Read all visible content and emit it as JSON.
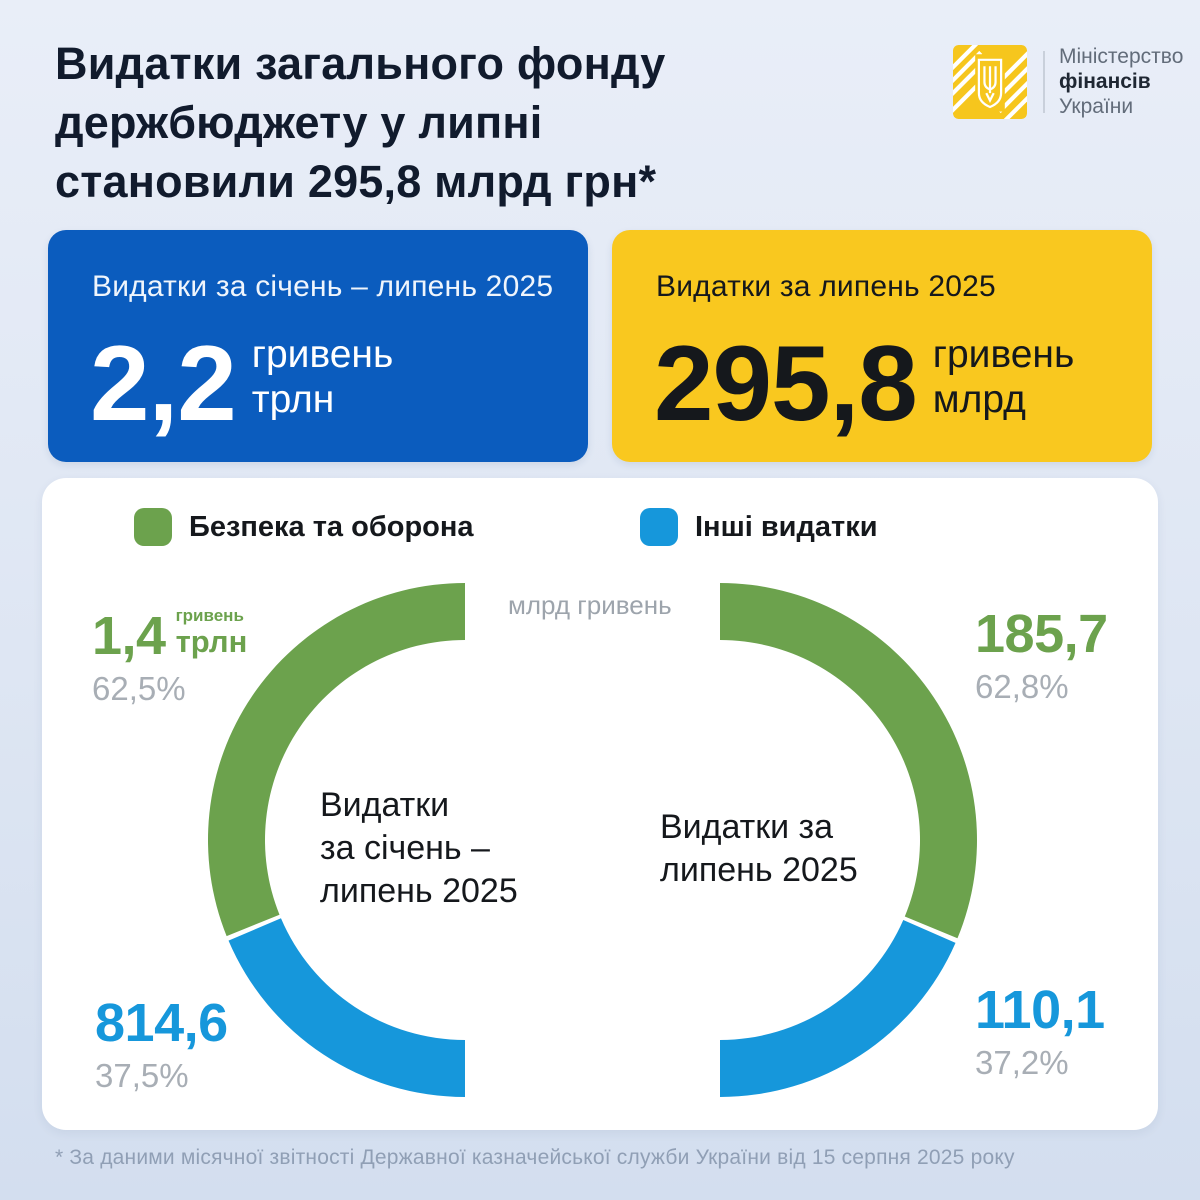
{
  "page": {
    "title_lines": [
      "Видатки загального фонду",
      "держбюджету у липні",
      "становили 295,8 млрд грн*"
    ],
    "footnote": "* За даними місячної звітності Державної казначейської служби України від 15 серпня 2025 року"
  },
  "logo": {
    "org_line1": "Міністерство",
    "org_line2": "фінансів",
    "org_line3": "України",
    "emblem_color": "#F6C61D"
  },
  "stat_cards": [
    {
      "label": "Видатки за січень – липень 2025",
      "value": "2,2",
      "unit_top": "гривень",
      "unit_bottom": "трлн",
      "bg": "#0B5CBE"
    },
    {
      "label": "Видатки за липень 2025",
      "value": "295,8",
      "unit_top": "гривень",
      "unit_bottom": "млрд",
      "bg": "#F9C81F"
    }
  ],
  "chart": {
    "legend": [
      {
        "label": "Безпека та оборона",
        "color": "#6CA24D"
      },
      {
        "label": "Інші видатки",
        "color": "#1697DB"
      }
    ],
    "units_caption": "млрд гривень"
  },
  "donuts": [
    {
      "side": "left",
      "center_lines": [
        "Видатки",
        "за січень –",
        "липень 2025"
      ],
      "segments": [
        {
          "name": "Безпека та оборона",
          "color": "#6CA24D",
          "pct": 62.5
        },
        {
          "name": "Інші видатки",
          "color": "#1697DB",
          "pct": 37.5
        }
      ],
      "value_labels": {
        "top": {
          "value": "1,4",
          "unit_small": "гривень",
          "unit_big": "трлн",
          "pct": "62,5%"
        },
        "bottom": {
          "value": "814,6",
          "pct": "37,5%"
        }
      }
    },
    {
      "side": "right",
      "center_lines": [
        "Видатки за",
        "липень 2025"
      ],
      "segments": [
        {
          "name": "Безпека та оборона",
          "color": "#6CA24D",
          "pct": 62.8
        },
        {
          "name": "Інші видатки",
          "color": "#1697DB",
          "pct": 37.2
        }
      ],
      "value_labels": {
        "top": {
          "value": "185,7",
          "pct": "62,8%"
        },
        "bottom": {
          "value": "110,1",
          "pct": "37,2%"
        }
      }
    }
  ],
  "chart_data": [
    {
      "type": "pie",
      "title": "Видатки за січень – липень 2025",
      "subtype": "half-donut, opens right",
      "unit": "млрд гривень",
      "labels": [
        "Безпека та оборона",
        "Інші видатки"
      ],
      "values": [
        1400,
        814.6
      ],
      "display_values": [
        "1,4 трлн гривень",
        "814,6"
      ],
      "percents": [
        62.5,
        37.5
      ],
      "colors": [
        "#6CA24D",
        "#1697DB"
      ],
      "legend_position": "top"
    },
    {
      "type": "pie",
      "title": "Видатки за липень 2025",
      "subtype": "half-donut, opens left",
      "unit": "млрд гривень",
      "labels": [
        "Безпека та оборона",
        "Інші видатки"
      ],
      "values": [
        185.7,
        110.1
      ],
      "display_values": [
        "185,7",
        "110,1"
      ],
      "percents": [
        62.8,
        37.2
      ],
      "colors": [
        "#6CA24D",
        "#1697DB"
      ],
      "legend_position": "top"
    }
  ]
}
